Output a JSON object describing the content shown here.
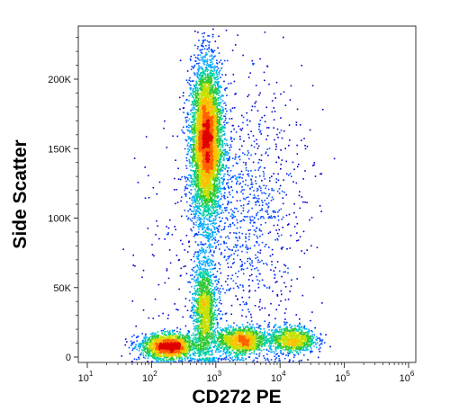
{
  "chart_data": {
    "type": "scatter",
    "title": "",
    "xlabel": "CD272 PE",
    "ylabel": "Side Scatter",
    "x_scale": "log",
    "xlim": [
      10,
      1000000
    ],
    "x_ticks": [
      {
        "base": "10",
        "exp": "1",
        "value": 10
      },
      {
        "base": "10",
        "exp": "2",
        "value": 100
      },
      {
        "base": "10",
        "exp": "3",
        "value": 1000
      },
      {
        "base": "10",
        "exp": "4",
        "value": 10000
      },
      {
        "base": "10",
        "exp": "5",
        "value": 100000
      },
      {
        "base": "10",
        "exp": "6",
        "value": 1000000
      }
    ],
    "y_scale": "linear",
    "ylim": [
      0,
      240000
    ],
    "y_ticks": [
      {
        "label": "0",
        "value": 0
      },
      {
        "label": "50K",
        "value": 50000
      },
      {
        "label": "100K",
        "value": 100000
      },
      {
        "label": "150K",
        "value": 150000
      },
      {
        "label": "200K",
        "value": 200000
      }
    ],
    "grid": false,
    "legend": "none",
    "color_scale": [
      "#0000cc",
      "#0044ff",
      "#00aaff",
      "#00d0a0",
      "#30c830",
      "#c8e000",
      "#ffc000",
      "#ff6000",
      "#e00000"
    ],
    "populations": [
      {
        "center_x": 700,
        "center_y": 155000,
        "spread_log10_x": 0.12,
        "spread_y": 28000,
        "points": 5200
      },
      {
        "center_x": 650,
        "center_y": 35000,
        "spread_log10_x": 0.09,
        "spread_y": 18000,
        "points": 1400
      },
      {
        "center_x": 180,
        "center_y": 8000,
        "spread_log10_x": 0.22,
        "spread_y": 4500,
        "points": 1800
      },
      {
        "center_x": 2500,
        "center_y": 12000,
        "spread_log10_x": 0.2,
        "spread_y": 5000,
        "points": 1300
      },
      {
        "center_x": 15000,
        "center_y": 13000,
        "spread_log10_x": 0.18,
        "spread_y": 5000,
        "points": 900
      },
      {
        "center_x": 3000,
        "center_y": 110000,
        "spread_log10_x": 0.45,
        "spread_y": 45000,
        "points": 900
      },
      {
        "center_x": 1000,
        "center_y": 60000,
        "spread_log10_x": 0.6,
        "spread_y": 60000,
        "points": 400
      }
    ]
  }
}
